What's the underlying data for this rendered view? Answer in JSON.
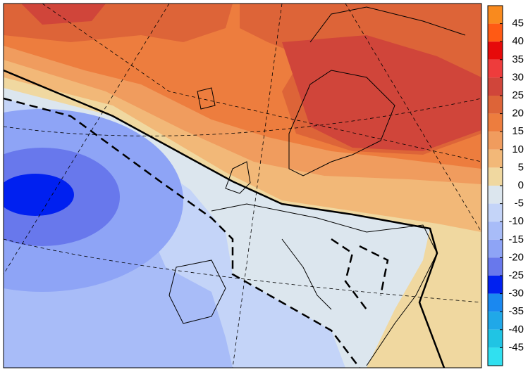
{
  "colorbar": {
    "levels": [
      45,
      40,
      35,
      30,
      25,
      20,
      15,
      10,
      5,
      0,
      -5,
      -10,
      -15,
      -20,
      -25,
      -30,
      -35,
      -40,
      -45
    ],
    "colors": [
      "#f98a1e",
      "#ff5a14",
      "#e60a0a",
      "#ee3c3c",
      "#d0453a",
      "#dd6438",
      "#ed7d3e",
      "#f09c5e",
      "#f2b878",
      "#f0d8a0",
      "#dce6ee",
      "#c4d4f8",
      "#a8bcf8",
      "#8ea4f6",
      "#6878ec",
      "#0020f0",
      "#1a88f0",
      "#20a8e8",
      "#20c4e4",
      "#30e0f0"
    ]
  }
}
